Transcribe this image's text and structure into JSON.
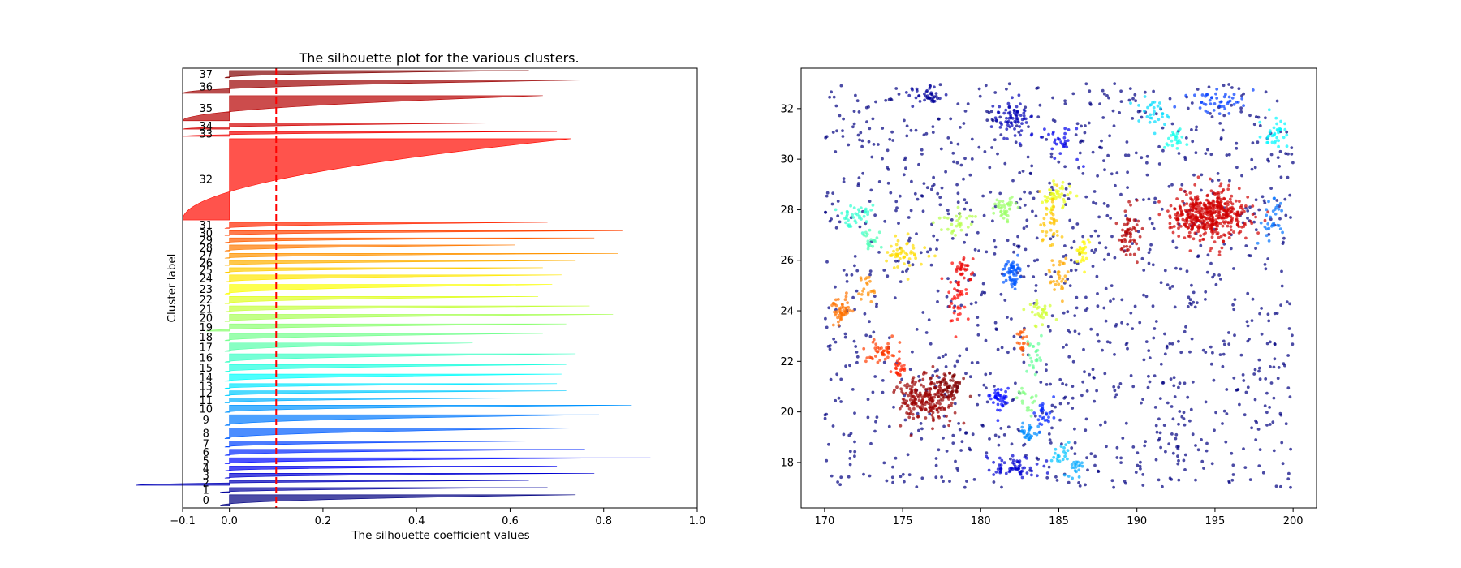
{
  "chart_data": [
    {
      "type": "bar",
      "orientation": "horizontal",
      "subtype": "silhouette",
      "title": "The silhouette plot for the various clusters.",
      "xlabel": "The silhouette coefficient values",
      "ylabel": "Cluster label",
      "xlim": [
        -0.1,
        1.0
      ],
      "xticks": [
        "−0.1",
        "0.0",
        "0.2",
        "0.4",
        "0.6",
        "0.8",
        "1.0"
      ],
      "xtick_values": [
        -0.1,
        0.0,
        0.2,
        0.4,
        0.6,
        0.8,
        1.0
      ],
      "average_silhouette_score": 0.1,
      "average_line_color": "#ff0000",
      "grid": false,
      "colormap": "jet",
      "clusters": [
        {
          "label": "0",
          "size": 45,
          "max": 0.74,
          "min": -0.02
        },
        {
          "label": "1",
          "size": 20,
          "max": 0.68,
          "min": -0.02
        },
        {
          "label": "2",
          "size": 20,
          "max": 0.64,
          "min": -0.2
        },
        {
          "label": "3",
          "size": 20,
          "max": 0.78,
          "min": -0.01
        },
        {
          "label": "4",
          "size": 20,
          "max": 0.7,
          "min": -0.01
        },
        {
          "label": "5",
          "size": 25,
          "max": 0.9,
          "min": -0.01
        },
        {
          "label": "6",
          "size": 25,
          "max": 0.76,
          "min": -0.01
        },
        {
          "label": "7",
          "size": 25,
          "max": 0.66,
          "min": -0.01
        },
        {
          "label": "8",
          "size": 45,
          "max": 0.77,
          "min": -0.01
        },
        {
          "label": "9",
          "size": 45,
          "max": 0.79,
          "min": -0.01
        },
        {
          "label": "10",
          "size": 30,
          "max": 0.86,
          "min": -0.01
        },
        {
          "label": "11",
          "size": 20,
          "max": 0.63,
          "min": -0.01
        },
        {
          "label": "12",
          "size": 20,
          "max": 0.72,
          "min": -0.01
        },
        {
          "label": "13",
          "size": 20,
          "max": 0.7,
          "min": -0.01
        },
        {
          "label": "14",
          "size": 30,
          "max": 0.71,
          "min": -0.01
        },
        {
          "label": "15",
          "size": 30,
          "max": 0.72,
          "min": -0.01
        },
        {
          "label": "16",
          "size": 35,
          "max": 0.74,
          "min": -0.01
        },
        {
          "label": "17",
          "size": 35,
          "max": 0.52,
          "min": -0.01
        },
        {
          "label": "18",
          "size": 30,
          "max": 0.67,
          "min": -0.01
        },
        {
          "label": "19",
          "size": 30,
          "max": 0.72,
          "min": -0.05
        },
        {
          "label": "20",
          "size": 30,
          "max": 0.82,
          "min": -0.01
        },
        {
          "label": "21",
          "size": 25,
          "max": 0.77,
          "min": -0.01
        },
        {
          "label": "22",
          "size": 30,
          "max": 0.66,
          "min": -0.01
        },
        {
          "label": "23",
          "size": 40,
          "max": 0.69,
          "min": -0.01
        },
        {
          "label": "24",
          "size": 30,
          "max": 0.71,
          "min": -0.01
        },
        {
          "label": "25",
          "size": 20,
          "max": 0.67,
          "min": -0.01
        },
        {
          "label": "26",
          "size": 20,
          "max": 0.74,
          "min": -0.01
        },
        {
          "label": "27",
          "size": 20,
          "max": 0.83,
          "min": -0.01
        },
        {
          "label": "28",
          "size": 25,
          "max": 0.61,
          "min": -0.01
        },
        {
          "label": "29",
          "size": 20,
          "max": 0.78,
          "min": -0.01
        },
        {
          "label": "30",
          "size": 20,
          "max": 0.84,
          "min": -0.01
        },
        {
          "label": "31",
          "size": 25,
          "max": 0.68,
          "min": -0.01
        },
        {
          "label": "32",
          "size": 340,
          "max": 0.73,
          "min": -0.1
        },
        {
          "label": "33",
          "size": 20,
          "max": 0.7,
          "min": -0.1
        },
        {
          "label": "34",
          "size": 25,
          "max": 0.55,
          "min": -0.1
        },
        {
          "label": "35",
          "size": 105,
          "max": 0.67,
          "min": -0.1
        },
        {
          "label": "36",
          "size": 55,
          "max": 0.75,
          "min": -0.1
        },
        {
          "label": "37",
          "size": 30,
          "max": 0.64,
          "min": -0.01
        }
      ]
    },
    {
      "type": "scatter",
      "title": "",
      "xlabel": "",
      "ylabel": "",
      "xlim": [
        168.5,
        201.5
      ],
      "ylim": [
        16.2,
        33.6
      ],
      "xticks": [
        170,
        175,
        180,
        185,
        190,
        195,
        200
      ],
      "yticks": [
        18,
        20,
        22,
        24,
        26,
        28,
        30,
        32
      ],
      "grid": false,
      "colormap": "jet",
      "noise_cluster": {
        "label": "0",
        "points": 1200,
        "x_range": [
          170,
          200
        ],
        "y_range": [
          17,
          33
        ]
      },
      "clusters": [
        {
          "label": "1",
          "center": [
            176.5,
            32.5
          ],
          "spread": [
            1.2,
            0.3
          ],
          "points": 40
        },
        {
          "label": "2",
          "center": [
            182.0,
            31.6
          ],
          "spread": [
            0.9,
            0.6
          ],
          "points": 70
        },
        {
          "label": "3",
          "center": [
            182.5,
            17.8
          ],
          "spread": [
            1.6,
            0.4
          ],
          "points": 60
        },
        {
          "label": "4",
          "center": [
            185.0,
            30.8
          ],
          "spread": [
            1.3,
            0.6
          ],
          "points": 30
        },
        {
          "label": "5",
          "center": [
            181.2,
            20.5
          ],
          "spread": [
            0.6,
            0.5
          ],
          "points": 40
        },
        {
          "label": "6",
          "center": [
            184.0,
            20.0
          ],
          "spread": [
            0.5,
            0.5
          ],
          "points": 25
        },
        {
          "label": "7",
          "center": [
            195.0,
            32.3
          ],
          "spread": [
            1.5,
            0.4
          ],
          "points": 45
        },
        {
          "label": "8",
          "center": [
            182.0,
            25.5
          ],
          "spread": [
            0.5,
            0.6
          ],
          "points": 60
        },
        {
          "label": "9",
          "center": [
            198.5,
            27.6
          ],
          "spread": [
            0.8,
            0.8
          ],
          "points": 30
        },
        {
          "label": "10",
          "center": [
            183.0,
            19.2
          ],
          "spread": [
            0.5,
            0.4
          ],
          "points": 30
        },
        {
          "label": "11",
          "center": [
            186.0,
            17.8
          ],
          "spread": [
            0.5,
            0.4
          ],
          "points": 20
        },
        {
          "label": "12",
          "center": [
            185.0,
            18.4
          ],
          "spread": [
            0.5,
            0.4
          ],
          "points": 20
        },
        {
          "label": "13",
          "center": [
            191.0,
            31.8
          ],
          "spread": [
            0.8,
            0.5
          ],
          "points": 30
        },
        {
          "label": "14",
          "center": [
            199.0,
            31.0
          ],
          "spread": [
            0.8,
            0.6
          ],
          "points": 35
        },
        {
          "label": "15",
          "center": [
            192.5,
            30.8
          ],
          "spread": [
            0.6,
            0.4
          ],
          "points": 25
        },
        {
          "label": "16",
          "center": [
            172.0,
            27.8
          ],
          "spread": [
            1.0,
            0.4
          ],
          "points": 40
        },
        {
          "label": "17",
          "center": [
            173.0,
            26.8
          ],
          "spread": [
            0.6,
            0.4
          ],
          "points": 20
        },
        {
          "label": "18",
          "center": [
            183.5,
            22.2
          ],
          "spread": [
            0.6,
            0.6
          ],
          "points": 25
        },
        {
          "label": "19",
          "center": [
            183.0,
            20.5
          ],
          "spread": [
            0.6,
            0.6
          ],
          "points": 20
        },
        {
          "label": "20",
          "center": [
            181.5,
            28.1
          ],
          "spread": [
            0.6,
            0.3
          ],
          "points": 40
        },
        {
          "label": "21",
          "center": [
            178.5,
            27.5
          ],
          "spread": [
            1.0,
            0.5
          ],
          "points": 30
        },
        {
          "label": "22",
          "center": [
            183.8,
            24.0
          ],
          "spread": [
            0.6,
            0.4
          ],
          "points": 30
        },
        {
          "label": "23",
          "center": [
            185.0,
            28.5
          ],
          "spread": [
            0.8,
            0.5
          ],
          "points": 45
        },
        {
          "label": "24",
          "center": [
            186.5,
            26.3
          ],
          "spread": [
            0.4,
            0.5
          ],
          "points": 25
        },
        {
          "label": "25",
          "center": [
            175.0,
            26.3
          ],
          "spread": [
            1.0,
            0.5
          ],
          "points": 50
        },
        {
          "label": "26",
          "center": [
            184.5,
            27.5
          ],
          "spread": [
            0.6,
            1.0
          ],
          "points": 35
        },
        {
          "label": "27",
          "center": [
            185.0,
            25.3
          ],
          "spread": [
            0.5,
            0.6
          ],
          "points": 30
        },
        {
          "label": "28",
          "center": [
            172.8,
            25.0
          ],
          "spread": [
            0.6,
            0.5
          ],
          "points": 20
        },
        {
          "label": "29",
          "center": [
            171.0,
            24.0
          ],
          "spread": [
            0.5,
            0.4
          ],
          "points": 50
        },
        {
          "label": "30",
          "center": [
            182.6,
            22.8
          ],
          "spread": [
            0.4,
            0.6
          ],
          "points": 20
        },
        {
          "label": "31",
          "center": [
            173.5,
            22.4
          ],
          "spread": [
            0.8,
            0.4
          ],
          "points": 40
        },
        {
          "label": "32",
          "center": [
            174.8,
            21.8
          ],
          "spread": [
            0.4,
            0.4
          ],
          "points": 25
        },
        {
          "label": "33",
          "center": [
            178.5,
            24.3
          ],
          "spread": [
            0.6,
            1.0
          ],
          "points": 35
        },
        {
          "label": "34",
          "center": [
            179.0,
            25.5
          ],
          "spread": [
            0.6,
            0.6
          ],
          "points": 30
        },
        {
          "label": "35",
          "center": [
            194.5,
            27.8
          ],
          "spread": [
            2.0,
            0.8
          ],
          "points": 450
        },
        {
          "label": "36",
          "center": [
            189.5,
            27.0
          ],
          "spread": [
            0.6,
            0.8
          ],
          "points": 60
        },
        {
          "label": "37",
          "center": [
            176.5,
            20.5
          ],
          "spread": [
            1.5,
            0.7
          ],
          "points": 210
        },
        {
          "label": "38",
          "center": [
            178.0,
            21.0
          ],
          "spread": [
            0.8,
            0.5
          ],
          "points": 60
        }
      ]
    }
  ]
}
